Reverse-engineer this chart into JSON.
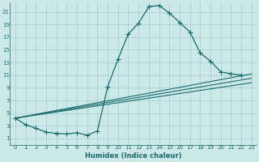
{
  "xlabel": "Humidex (Indice chaleur)",
  "bg_color": "#cce8e8",
  "grid_color": "#a0cfcf",
  "line_color": "#1a6b6b",
  "xlim": [
    -0.5,
    23.5
  ],
  "ylim": [
    0,
    22.5
  ],
  "xticks": [
    0,
    1,
    2,
    3,
    4,
    5,
    6,
    7,
    8,
    9,
    10,
    11,
    12,
    13,
    14,
    15,
    16,
    17,
    18,
    19,
    20,
    21,
    22,
    23
  ],
  "yticks": [
    1,
    3,
    5,
    7,
    9,
    11,
    13,
    15,
    17,
    19,
    21
  ],
  "curve_x": [
    0,
    1,
    2,
    3,
    4,
    5,
    6,
    7,
    8,
    9,
    10,
    11,
    12,
    13,
    14,
    15,
    16,
    17,
    18,
    19,
    20,
    21,
    22
  ],
  "curve_y": [
    4.2,
    3.2,
    2.6,
    2.0,
    1.8,
    1.7,
    1.9,
    1.5,
    2.2,
    9.2,
    13.5,
    17.5,
    19.2,
    21.8,
    22.0,
    20.8,
    19.3,
    17.8,
    14.5,
    13.2,
    11.5,
    11.2,
    11.0
  ],
  "line1_x": [
    0,
    23
  ],
  "line1_y": [
    4.2,
    11.2
  ],
  "line2_x": [
    0,
    23
  ],
  "line2_y": [
    4.2,
    10.5
  ],
  "line3_x": [
    0,
    23
  ],
  "line3_y": [
    4.2,
    9.8
  ],
  "marker_size": 2.0,
  "tick_fontsize": 5.0,
  "xlabel_fontsize": 6.0
}
